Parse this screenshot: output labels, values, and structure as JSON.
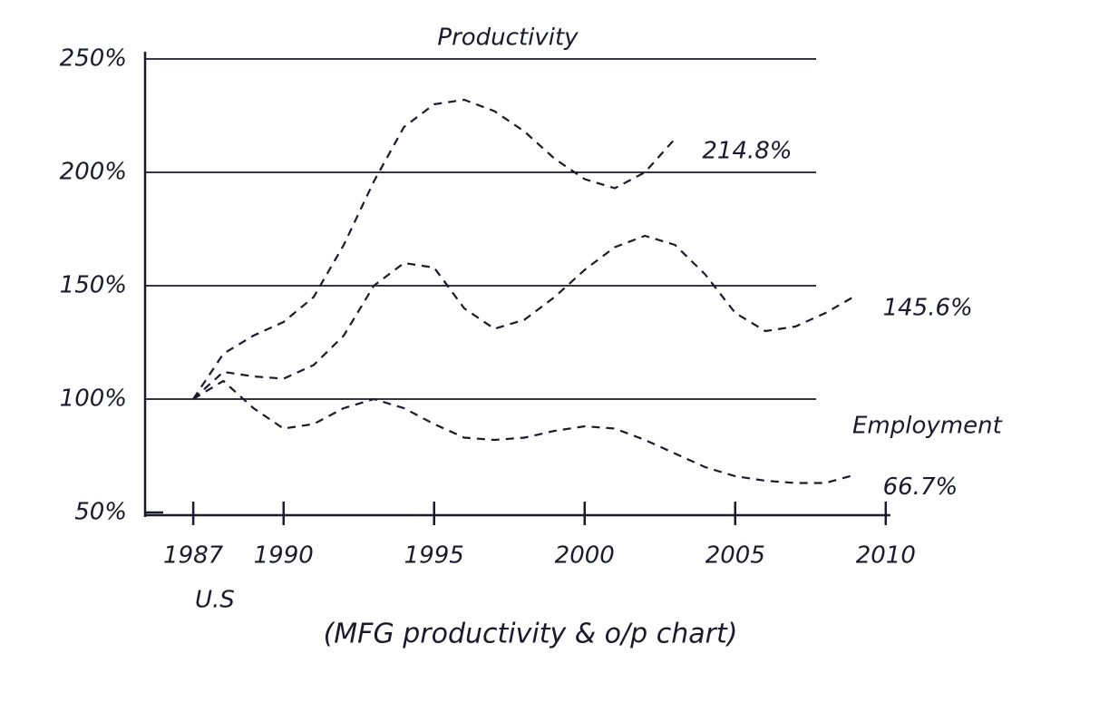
{
  "chart_data": {
    "type": "line",
    "x": [
      1987,
      1988,
      1989,
      1990,
      1991,
      1992,
      1993,
      1994,
      1995,
      1996,
      1997,
      1998,
      1999,
      2000,
      2001,
      2002,
      2003,
      2004,
      2005,
      2006,
      2007,
      2008,
      2009
    ],
    "series": [
      {
        "name": "Productivity",
        "color": "#1a1a2e",
        "values": [
          100,
          120,
          128,
          134,
          145,
          168,
          196,
          220,
          230,
          232,
          227,
          218,
          206,
          197,
          193,
          200,
          214.8,
          null,
          null,
          null,
          null,
          null,
          null
        ],
        "value_labels": [
          null,
          null,
          null,
          null,
          null,
          null,
          null,
          null,
          null,
          null,
          null,
          null,
          null,
          null,
          null,
          null,
          "214.8%",
          null,
          null,
          null,
          null,
          null,
          null
        ]
      },
      {
        "color": "#1a1a2e",
        "values": [
          100,
          112,
          110,
          109,
          115,
          128,
          150,
          160,
          158,
          140,
          131,
          135,
          145,
          157,
          167,
          172,
          168,
          155,
          138,
          130,
          132,
          138,
          145.6
        ],
        "value_labels": [
          null,
          null,
          null,
          null,
          null,
          null,
          null,
          null,
          null,
          null,
          null,
          null,
          null,
          null,
          null,
          null,
          null,
          null,
          null,
          null,
          null,
          null,
          "145.6%"
        ]
      },
      {
        "name": "Employment",
        "color": "#1a1a2e",
        "values": [
          100,
          108,
          96,
          87,
          89,
          96,
          100,
          96,
          89,
          83,
          82,
          83,
          86,
          88,
          87,
          82,
          76,
          70,
          66,
          64,
          63,
          63,
          66.7
        ],
        "value_labels": [
          null,
          null,
          null,
          null,
          null,
          null,
          null,
          null,
          null,
          null,
          null,
          null,
          null,
          null,
          null,
          null,
          null,
          null,
          null,
          null,
          null,
          null,
          "66.7%"
        ]
      }
    ],
    "xlim": [
      1985.4,
      2011
    ],
    "xticks": [
      1987,
      1990,
      1995,
      2000,
      2005,
      2010
    ],
    "ylim": [
      50,
      250
    ],
    "yticks": [
      {
        "value": 50,
        "label": "50%"
      },
      {
        "value": 100,
        "label": "100%"
      },
      {
        "value": 150,
        "label": "150%"
      },
      {
        "value": 200,
        "label": "200%"
      },
      {
        "value": 250,
        "label": "250%"
      }
    ],
    "grid": true,
    "annotations": [
      "U.S",
      "(MFG productivity & o/p chart)"
    ]
  }
}
